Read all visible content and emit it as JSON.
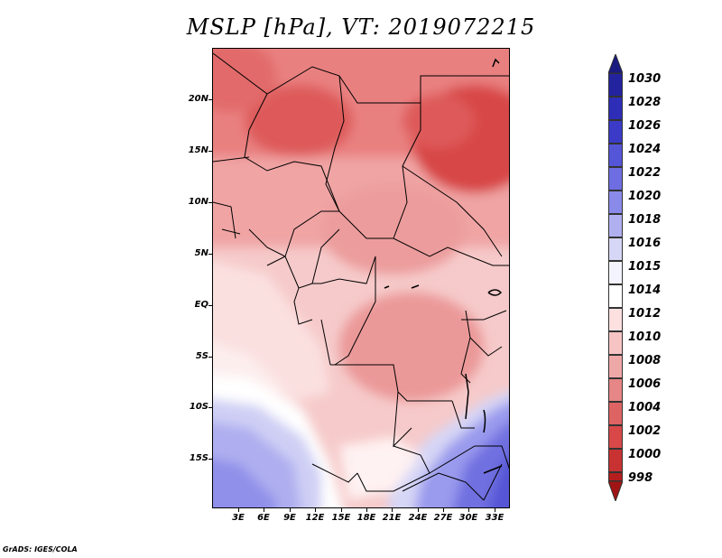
{
  "title": "MSLP [hPa], VT: 2019072215",
  "footer": "GrADS: IGES/COLA",
  "lat_labels": [
    "20N",
    "15N",
    "10N",
    "5N",
    "EQ",
    "5S",
    "10S",
    "15S"
  ],
  "lon_labels": [
    "3E",
    "6E",
    "9E",
    "12E",
    "15E",
    "18E",
    "21E",
    "24E",
    "27E",
    "30E",
    "33E"
  ],
  "colorbar": {
    "levels": [
      "1030",
      "1028",
      "1026",
      "1024",
      "1022",
      "1020",
      "1018",
      "1016",
      "1015",
      "1014",
      "1012",
      "1010",
      "1008",
      "1006",
      "1004",
      "1002",
      "1000",
      "998"
    ],
    "colors": [
      "#1a1a80",
      "#2323a0",
      "#2d2db8",
      "#3b3bc8",
      "#5555d8",
      "#6e6ee2",
      "#8a8aea",
      "#b0b0f0",
      "#d6d6f6",
      "#f4f4ff",
      "#fde0e0",
      "#f7c4c4",
      "#efa8a8",
      "#e68686",
      "#de6464",
      "#d84848",
      "#c83232",
      "#b41e1e",
      "#a01414"
    ]
  },
  "colors": {
    "low_pressure": "#d84848",
    "high_pressure": "#3b3bc8",
    "neutral": "#ffffff",
    "border": "#000000"
  }
}
